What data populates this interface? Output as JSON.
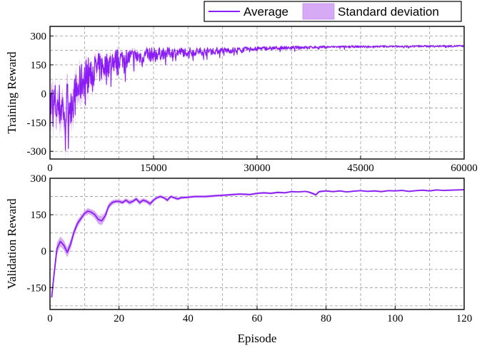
{
  "chart_data": [
    {
      "type": "line",
      "xlabel": "",
      "ylabel": "Training Reward",
      "xlim": [
        0,
        60000
      ],
      "ylim": [
        -340,
        350
      ],
      "x_ticks": [
        "0",
        "15000",
        "30000",
        "45000",
        "60000"
      ],
      "x_tick_values": [
        0,
        15000,
        30000,
        45000,
        60000
      ],
      "y_ticks": [
        "300",
        "150",
        "0",
        "-150",
        "-300"
      ],
      "y_tick_values": [
        300,
        150,
        0,
        -150,
        -300
      ],
      "grid": true,
      "series": [
        {
          "name": "Average",
          "kind": "noisy-mean",
          "color": "#8a1cf5",
          "x": [
            0,
            2000,
            3500,
            5000,
            7000,
            10000,
            12000,
            15000,
            18000,
            22000,
            26000,
            30000,
            35000,
            40000,
            45000,
            50000,
            55000,
            60000
          ],
          "values": [
            -60,
            -70,
            -20,
            90,
            130,
            180,
            190,
            205,
            215,
            220,
            225,
            235,
            240,
            243,
            245,
            246,
            247,
            248
          ],
          "noise_amplitude": [
            130,
            130,
            110,
            100,
            80,
            55,
            45,
            35,
            25,
            20,
            15,
            10,
            8,
            6,
            5,
            5,
            5,
            5
          ]
        },
        {
          "name": "Standard deviation",
          "kind": "band",
          "color": "#d7aaf5",
          "x": [
            0,
            2000,
            3500,
            5000,
            7000,
            10000,
            15000,
            22000,
            30000,
            40000,
            50000,
            60000
          ],
          "values": [
            60,
            60,
            50,
            35,
            28,
            18,
            12,
            8,
            5,
            3,
            3,
            3
          ]
        }
      ]
    },
    {
      "type": "line",
      "xlabel": "Episode",
      "ylabel": "Validation Reward",
      "xlim": [
        0,
        120
      ],
      "ylim": [
        -240,
        300
      ],
      "x_ticks": [
        "0",
        "20",
        "40",
        "60",
        "80",
        "100",
        "120"
      ],
      "x_tick_values": [
        0,
        20,
        40,
        60,
        80,
        100,
        120
      ],
      "y_ticks": [
        "300",
        "150",
        "0",
        "-150"
      ],
      "y_tick_values": [
        300,
        150,
        0,
        -150
      ],
      "grid": true,
      "series": [
        {
          "name": "Average",
          "color": "#8a1cf5",
          "x": [
            0.5,
            1,
            2,
            3,
            4,
            5,
            6,
            7,
            8,
            9,
            10,
            11,
            12,
            13,
            14,
            15,
            16,
            17,
            18,
            19,
            20,
            21,
            22,
            23,
            24,
            25,
            26,
            27,
            28,
            29,
            30,
            31,
            32,
            33,
            34,
            35,
            36,
            37,
            38,
            40,
            42,
            45,
            48,
            50,
            52,
            55,
            58,
            60,
            62,
            64,
            66,
            68,
            70,
            72,
            74,
            75,
            76,
            77,
            78,
            80,
            82,
            84,
            86,
            88,
            90,
            92,
            94,
            96,
            98,
            100,
            102,
            104,
            106,
            108,
            110,
            112,
            114,
            116,
            118,
            120
          ],
          "values": [
            -190,
            -120,
            10,
            40,
            25,
            -5,
            30,
            80,
            115,
            135,
            155,
            165,
            160,
            150,
            130,
            125,
            145,
            185,
            200,
            205,
            205,
            200,
            210,
            200,
            205,
            215,
            200,
            210,
            205,
            195,
            210,
            220,
            225,
            220,
            210,
            225,
            220,
            215,
            220,
            222,
            225,
            225,
            228,
            230,
            232,
            235,
            233,
            238,
            240,
            238,
            242,
            240,
            245,
            244,
            246,
            243,
            238,
            232,
            245,
            248,
            245,
            248,
            244,
            247,
            249,
            246,
            248,
            245,
            249,
            248,
            250,
            246,
            249,
            251,
            248,
            252,
            250,
            251,
            252,
            253
          ],
          "std": [
            15,
            20,
            25,
            20,
            20,
            20,
            20,
            15,
            15,
            12,
            12,
            12,
            12,
            15,
            18,
            18,
            15,
            12,
            10,
            8,
            8,
            8,
            8,
            10,
            8,
            8,
            10,
            8,
            8,
            10,
            8,
            6,
            6,
            6,
            8,
            6,
            6,
            6,
            6,
            5,
            5,
            5,
            5,
            4,
            4,
            4,
            4,
            4,
            4,
            4,
            4,
            4,
            3,
            3,
            3,
            4,
            5,
            5,
            4,
            3,
            3,
            3,
            3,
            3,
            3,
            3,
            3,
            3,
            3,
            3,
            3,
            3,
            3,
            3,
            3,
            3,
            3,
            3,
            3,
            3
          ]
        }
      ]
    }
  ],
  "legend": {
    "average_label": "Average",
    "std_label": "Standard deviation"
  },
  "colors": {
    "average": "#8a1cf5",
    "band": "#d7aaf5"
  }
}
